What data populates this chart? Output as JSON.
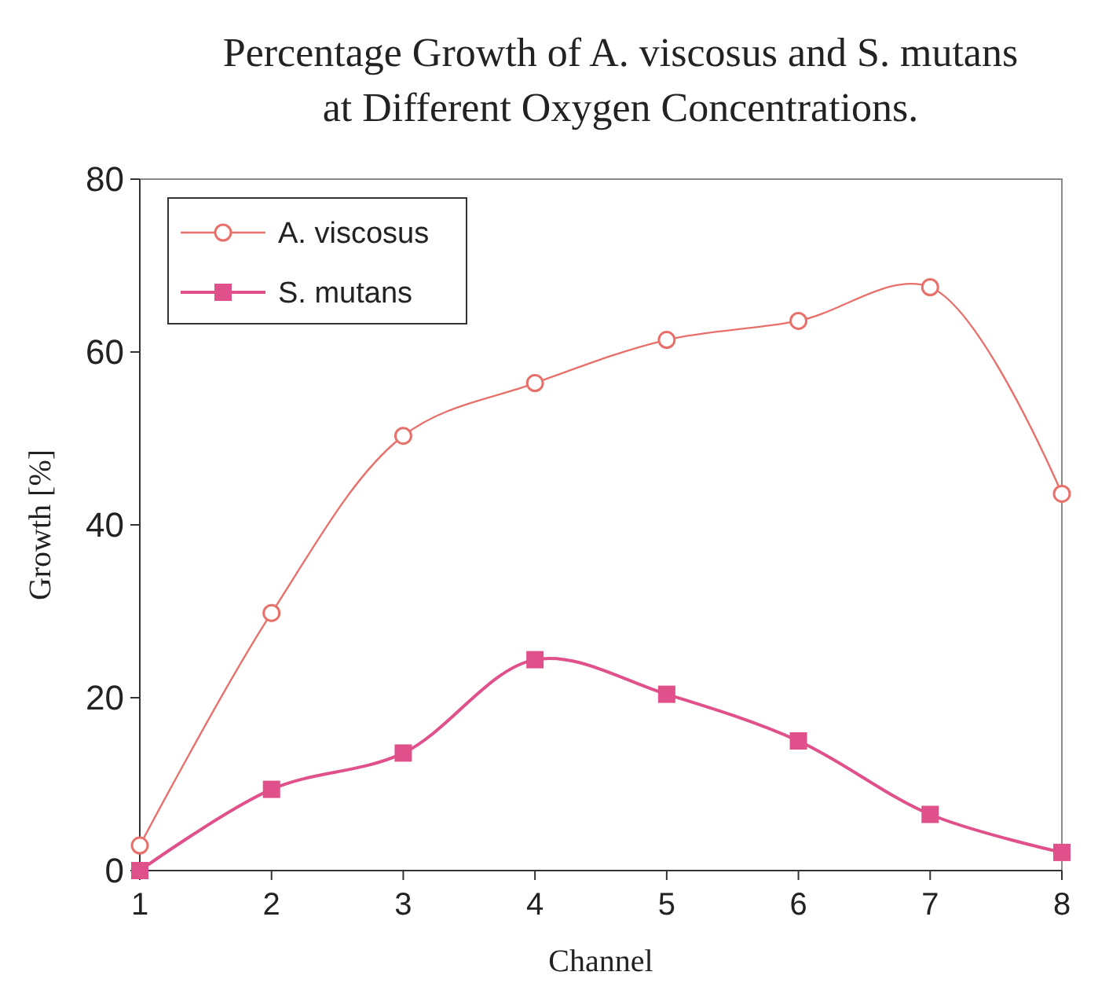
{
  "chart_data": {
    "type": "line",
    "title": "Percentage Growth of A. viscosus and S. mutans at Different Oxygen Concentrations.",
    "xlabel": "Channel",
    "ylabel": "Growth [%]",
    "x": [
      1,
      2,
      3,
      4,
      5,
      6,
      7,
      8
    ],
    "xlim": [
      1,
      8
    ],
    "xticks": [
      1,
      2,
      3,
      4,
      5,
      6,
      7,
      8
    ],
    "ylim": [
      0,
      80
    ],
    "yticks": [
      0,
      20,
      40,
      60,
      80
    ],
    "grid": false,
    "legend": "top left",
    "series": [
      {
        "name": "A. viscosus",
        "color": "#e8706a",
        "marker": "circle",
        "values": [
          2.9,
          29.8,
          50.3,
          56.4,
          61.4,
          63.6,
          67.5,
          43.6
        ]
      },
      {
        "name": "S. mutans",
        "color": "#e0508a",
        "marker": "square",
        "values": [
          0,
          9.4,
          13.6,
          24.4,
          20.4,
          15,
          6.5,
          2.1
        ]
      }
    ]
  }
}
